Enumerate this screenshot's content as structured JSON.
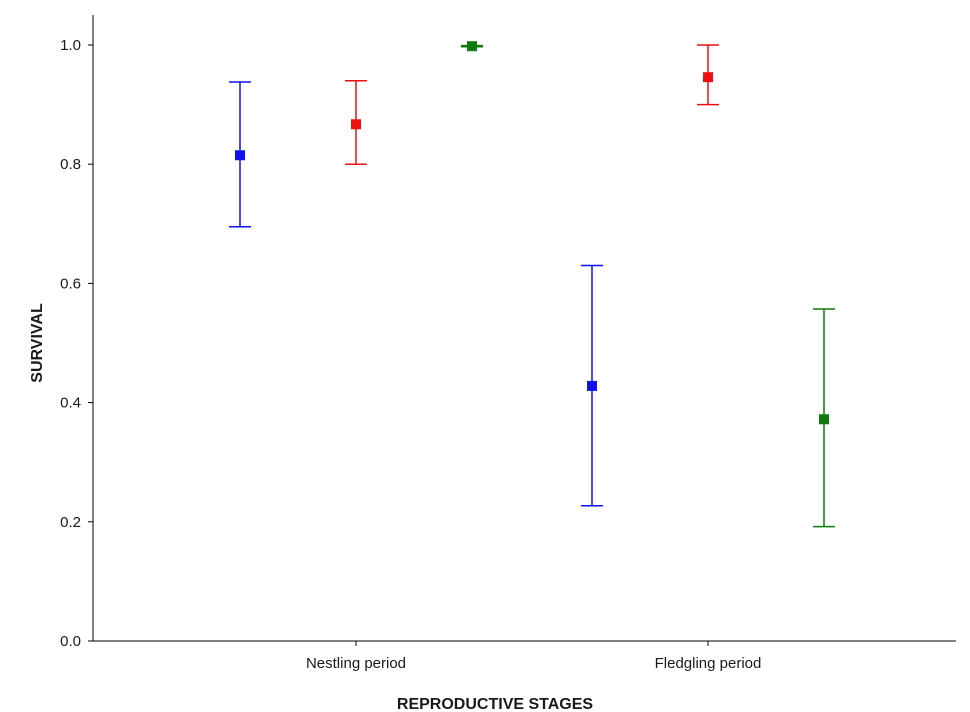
{
  "chart_data": {
    "type": "scatter",
    "subtype": "error-bar",
    "xlabel": "REPRODUCTIVE STAGES",
    "ylabel": "SURVIVAL",
    "ylim": [
      0.0,
      1.05
    ],
    "yticks": [
      "0.0",
      "0.2",
      "0.4",
      "0.6",
      "0.8",
      "1.0"
    ],
    "categories": [
      "Nestling period",
      "Fledgling period"
    ],
    "grid": false,
    "legend": "none",
    "series": [
      {
        "color": "#1010ee",
        "points": [
          {
            "category": "Nestling period",
            "value": 0.815,
            "lower": 0.695,
            "upper": 0.938
          },
          {
            "category": "Fledgling period",
            "value": 0.428,
            "lower": 0.227,
            "upper": 0.63
          }
        ]
      },
      {
        "color": "#ee1010",
        "points": [
          {
            "category": "Nestling period",
            "value": 0.867,
            "lower": 0.8,
            "upper": 0.94
          },
          {
            "category": "Fledgling period",
            "value": 0.946,
            "lower": 0.9,
            "upper": 1.0
          }
        ]
      },
      {
        "color": "#0f7a0f",
        "points": [
          {
            "category": "Nestling period",
            "value": 0.998,
            "lower": 0.997,
            "upper": 0.999
          },
          {
            "category": "Fledgling period",
            "value": 0.372,
            "lower": 0.192,
            "upper": 0.557
          }
        ]
      }
    ]
  }
}
